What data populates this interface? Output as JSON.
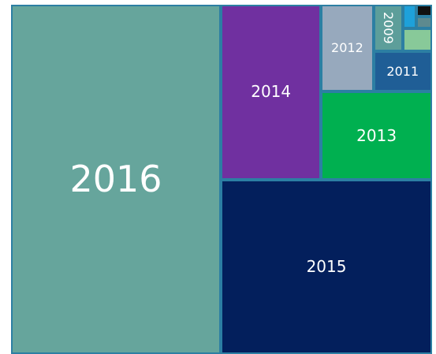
{
  "chart_data": {
    "type": "treemap",
    "categories": [
      "2016",
      "2015",
      "2014",
      "2013",
      "2012",
      "2011",
      "2009",
      null,
      null,
      null,
      null
    ],
    "values": [
      1178,
      592,
      282,
      157,
      73,
      38,
      22,
      11,
      5,
      3,
      3
    ],
    "colors": [
      "#66a59c",
      "#031f5c",
      "#7030a0",
      "#00b050",
      "#97a9bd",
      "#1f5e96",
      "#5d9e9a",
      "#88c999",
      "#1ea1da",
      "#5d8a8f",
      "#111111"
    ]
  }
}
